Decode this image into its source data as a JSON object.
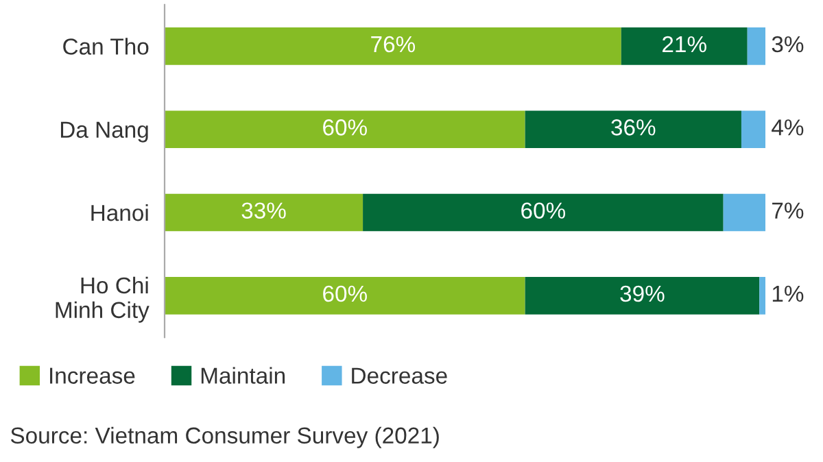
{
  "chart_data": {
    "type": "bar",
    "orientation": "horizontal",
    "stacked": true,
    "legend": "bottom left",
    "grid": false,
    "categories": [
      "Can Tho",
      "Da Nang",
      "Hanoi",
      "Ho Chi\nMinh City"
    ],
    "series": [
      {
        "name": "Increase",
        "color": "#86bc25",
        "values": [
          76,
          60,
          33,
          60
        ],
        "value_labels": [
          "76%",
          "60%",
          "33%",
          "60%"
        ]
      },
      {
        "name": "Maintain",
        "color": "#046a38",
        "values": [
          21,
          36,
          60,
          39
        ],
        "value_labels": [
          "21%",
          "36%",
          "60%",
          "39%"
        ]
      },
      {
        "name": "Decrease",
        "color": "#62b5e5",
        "values": [
          3,
          4,
          7,
          1
        ],
        "value_labels": [
          "3%",
          "4%",
          "7%",
          "1%"
        ]
      }
    ],
    "annotations": [
      "Source: Vietnam Consumer Survey (2021)"
    ]
  }
}
